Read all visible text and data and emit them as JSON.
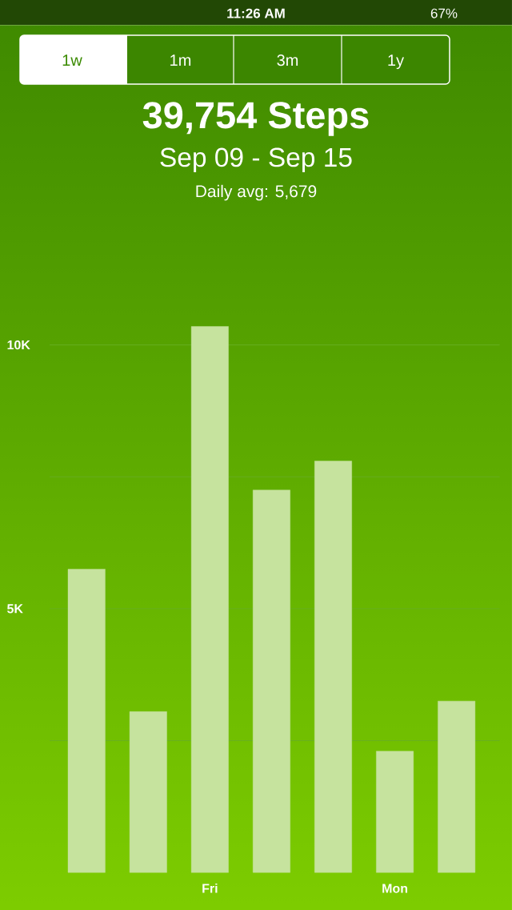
{
  "chart_data": {
    "type": "bar",
    "title": "39,754 Steps",
    "subtitle": "Sep 09 - Sep 15",
    "categories": [
      null,
      null,
      "Fri",
      null,
      null,
      "Mon",
      null
    ],
    "values": [
      5750,
      3050,
      10350,
      7250,
      7800,
      2300,
      3250
    ],
    "color": "#c6e39e",
    "ylim": [
      0,
      10350
    ],
    "yticks": [
      {
        "value": 2500,
        "label": null
      },
      {
        "value": 5000,
        "label": "5K"
      },
      {
        "value": 7500,
        "label": null
      },
      {
        "value": 10000,
        "label": "10K"
      }
    ],
    "grid": "y",
    "annotations": [
      "Daily avg: 5,679",
      "1w",
      "1m",
      "3m",
      "1y",
      "11:26 AM",
      "67%"
    ]
  }
}
